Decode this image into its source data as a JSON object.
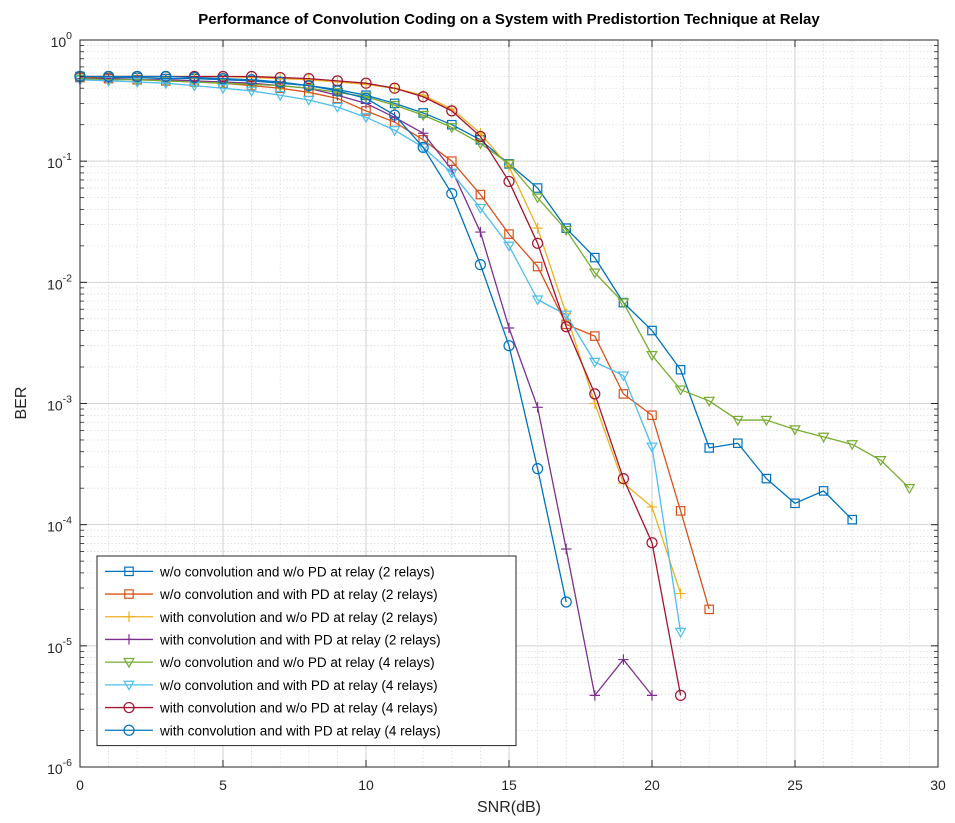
{
  "chart_data": {
    "type": "line",
    "title": "Performance of Convolution Coding on a System with Predistortion Technique at Relay",
    "xlabel": "SNR(dB)",
    "ylabel": "BER",
    "xlim": [
      0,
      30
    ],
    "ylim": [
      1e-06,
      1
    ],
    "yscale": "log",
    "grid": true,
    "minor_grid": true,
    "legend_position": "bottom-left",
    "x_ticks": [
      "0",
      "5",
      "10",
      "15",
      "20",
      "25",
      "30"
    ],
    "y_ticks": [
      {
        "base": "10",
        "exp": "0"
      },
      {
        "base": "10",
        "exp": "-1"
      },
      {
        "base": "10",
        "exp": "-2"
      },
      {
        "base": "10",
        "exp": "-3"
      },
      {
        "base": "10",
        "exp": "-4"
      },
      {
        "base": "10",
        "exp": "-5"
      },
      {
        "base": "10",
        "exp": "-6"
      }
    ],
    "series": [
      {
        "name": "w/o convolution and w/o PD at relay (2 relays)",
        "color": "#0072BD",
        "marker": "square",
        "x": [
          0,
          1,
          2,
          3,
          4,
          5,
          6,
          7,
          8,
          9,
          10,
          11,
          12,
          13,
          14,
          15,
          16,
          17,
          18,
          19,
          20,
          21,
          22,
          23,
          24,
          25,
          26,
          27
        ],
        "y": [
          0.5,
          0.49,
          0.49,
          0.48,
          0.48,
          0.47,
          0.46,
          0.44,
          0.42,
          0.39,
          0.35,
          0.3,
          0.25,
          0.2,
          0.15,
          0.095,
          0.06,
          0.028,
          0.016,
          0.0068,
          0.004,
          0.0019,
          0.00043,
          0.00047,
          0.00024,
          0.00015,
          0.00019,
          0.00011
        ]
      },
      {
        "name": "w/o convolution and with PD at relay (2 relays)",
        "color": "#D95319",
        "marker": "square",
        "x": [
          0,
          1,
          2,
          3,
          4,
          5,
          6,
          7,
          8,
          9,
          10,
          11,
          12,
          13,
          14,
          15,
          16,
          17,
          18,
          19,
          20,
          21,
          22
        ],
        "y": [
          0.49,
          0.48,
          0.47,
          0.46,
          0.45,
          0.44,
          0.42,
          0.4,
          0.37,
          0.33,
          0.26,
          0.21,
          0.15,
          0.1,
          0.053,
          0.025,
          0.0135,
          0.0045,
          0.0036,
          0.0012,
          0.0008,
          0.00013,
          2e-05
        ]
      },
      {
        "name": "with convolution and w/o PD at relay (2 relays)",
        "color": "#EDB120",
        "marker": "plus",
        "x": [
          0,
          1,
          2,
          3,
          4,
          5,
          6,
          7,
          8,
          9,
          10,
          11,
          12,
          13,
          14,
          15,
          16,
          17,
          18,
          19,
          20,
          21
        ],
        "y": [
          0.5,
          0.5,
          0.5,
          0.5,
          0.5,
          0.5,
          0.49,
          0.48,
          0.47,
          0.45,
          0.43,
          0.4,
          0.35,
          0.27,
          0.17,
          0.09,
          0.028,
          0.0055,
          0.001,
          0.00022,
          0.00014,
          2.7e-05
        ]
      },
      {
        "name": "with convolution and with PD at relay (2 relays)",
        "color": "#7E2F8E",
        "marker": "plus",
        "x": [
          0,
          1,
          2,
          3,
          4,
          5,
          6,
          7,
          8,
          9,
          10,
          11,
          12,
          13,
          14,
          15,
          16,
          17,
          18,
          19,
          20
        ],
        "y": [
          0.48,
          0.48,
          0.47,
          0.47,
          0.46,
          0.45,
          0.44,
          0.42,
          0.4,
          0.35,
          0.3,
          0.23,
          0.17,
          0.085,
          0.026,
          0.0042,
          0.00093,
          6.3e-05,
          3.9e-06,
          7.7e-06,
          3.9e-06
        ]
      },
      {
        "name": "w/o convolution and w/o PD at relay (4 relays)",
        "color": "#77AC30",
        "marker": "triangle-down",
        "x": [
          0,
          1,
          2,
          3,
          4,
          5,
          6,
          7,
          8,
          9,
          10,
          11,
          12,
          13,
          14,
          15,
          16,
          17,
          18,
          19,
          20,
          21,
          22,
          23,
          24,
          25,
          26,
          27,
          28,
          29
        ],
        "y": [
          0.48,
          0.47,
          0.47,
          0.46,
          0.45,
          0.44,
          0.43,
          0.42,
          0.4,
          0.37,
          0.34,
          0.29,
          0.24,
          0.19,
          0.14,
          0.095,
          0.05,
          0.027,
          0.012,
          0.0068,
          0.0025,
          0.0013,
          0.00105,
          0.00073,
          0.00073,
          0.00061,
          0.00053,
          0.00046,
          0.00034,
          0.0002
        ]
      },
      {
        "name": "w/o convolution and with PD at relay (4 relays)",
        "color": "#4DBEEE",
        "marker": "triangle-down",
        "x": [
          0,
          1,
          2,
          3,
          4,
          5,
          6,
          7,
          8,
          9,
          10,
          11,
          12,
          13,
          14,
          15,
          16,
          17,
          18,
          19,
          20,
          21
        ],
        "y": [
          0.47,
          0.46,
          0.45,
          0.44,
          0.42,
          0.4,
          0.38,
          0.35,
          0.32,
          0.28,
          0.23,
          0.18,
          0.13,
          0.08,
          0.041,
          0.02,
          0.0072,
          0.0054,
          0.0022,
          0.0017,
          0.00044,
          1.3e-05
        ]
      },
      {
        "name": "with convolution and w/o PD at relay (4 relays)",
        "color": "#A2142F",
        "marker": "circle",
        "x": [
          0,
          1,
          2,
          3,
          4,
          5,
          6,
          7,
          8,
          9,
          10,
          11,
          12,
          13,
          14,
          15,
          16,
          17,
          18,
          19,
          20,
          21
        ],
        "y": [
          0.5,
          0.5,
          0.5,
          0.5,
          0.5,
          0.5,
          0.5,
          0.49,
          0.48,
          0.46,
          0.44,
          0.4,
          0.34,
          0.26,
          0.16,
          0.068,
          0.021,
          0.0043,
          0.0012,
          0.00024,
          7.1e-05,
          3.9e-06
        ]
      },
      {
        "name": "with convolution and with PD at relay (4 relays)",
        "color": "#0072BD",
        "marker": "circle",
        "x": [
          0,
          1,
          2,
          3,
          4,
          5,
          6,
          7,
          8,
          9,
          10,
          11,
          12,
          13,
          14,
          15,
          16,
          17
        ],
        "y": [
          0.5,
          0.5,
          0.5,
          0.5,
          0.49,
          0.48,
          0.47,
          0.45,
          0.42,
          0.38,
          0.33,
          0.24,
          0.13,
          0.054,
          0.014,
          0.003,
          0.00029,
          2.3e-05
        ]
      }
    ]
  }
}
